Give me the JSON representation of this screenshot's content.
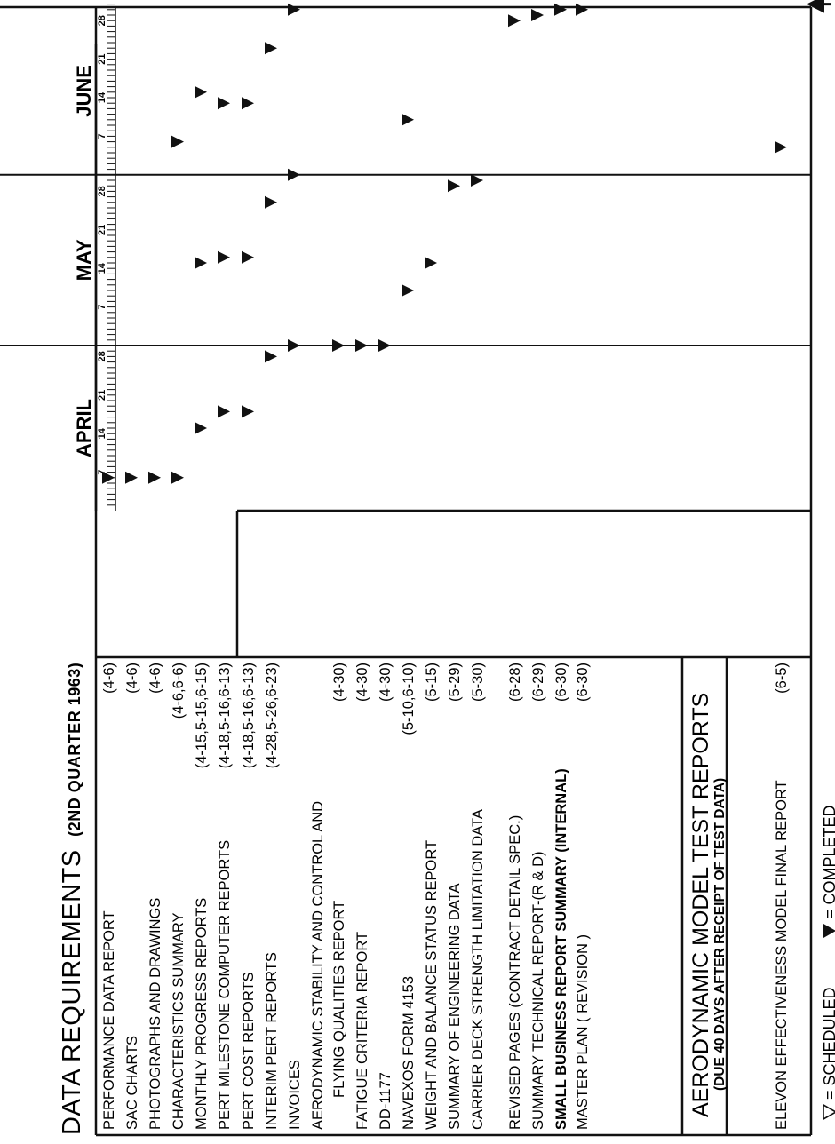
{
  "header": {
    "title": "DATA REQUIREMENTS",
    "subtitle": "(2ND QUARTER 1963)"
  },
  "months": [
    {
      "label": "APRIL",
      "start_day": 1,
      "ticks": [
        "7",
        "14",
        "21",
        "28"
      ]
    },
    {
      "label": "MAY",
      "start_day": 31,
      "ticks": [
        "7",
        "14",
        "21",
        "28"
      ]
    },
    {
      "label": "JUNE",
      "start_day": 62,
      "ticks": [
        "7",
        "14",
        "21",
        "28"
      ]
    }
  ],
  "rows": [
    {
      "label": "PERFORMANCE DATA REPORT",
      "dates": "(4-6)",
      "completed": [
        6
      ]
    },
    {
      "label": "SAC CHARTS",
      "dates": "(4-6)",
      "completed": [
        6
      ]
    },
    {
      "label": "PHOTOGRAPHS AND DRAWINGS",
      "dates": "(4-6)",
      "completed": [
        6
      ]
    },
    {
      "label": "CHARACTERISTICS SUMMARY",
      "dates": "(4-6,6-6)",
      "completed": [
        6,
        67
      ]
    },
    {
      "label": "MONTHLY PROGRESS REPORTS",
      "dates": "(4-15,5-15,6-15)",
      "completed": [
        15,
        45,
        76
      ]
    },
    {
      "label": "PERT MILESTONE COMPUTER REPORTS",
      "dates": "(4-18,5-16,6-13)",
      "completed": [
        18,
        46,
        74
      ]
    },
    {
      "label": "PERT COST REPORTS",
      "dates": "(4-18,5-16,6-13)",
      "completed": [
        18,
        46,
        74
      ]
    },
    {
      "label": "INTERIM PERT REPORTS",
      "dates": "(4-28,5-26,6-23)",
      "completed": [
        28,
        56,
        84
      ]
    },
    {
      "label": "INVOICES",
      "dates": "",
      "completed": [
        30,
        61,
        91
      ]
    },
    {
      "label": "AERODYNAMIC STABILITY AND CONTROL AND",
      "label2": "FLYING QUALITIES REPORT",
      "dates": "(4-30)",
      "completed": [
        30
      ]
    },
    {
      "label": "FATIGUE CRITERIA REPORT",
      "dates": "(4-30)",
      "completed": [
        30
      ]
    },
    {
      "label": "DD-1177",
      "dates": "(4-30)",
      "completed": [
        30
      ]
    },
    {
      "label": "NAVEXOS FORM 4153",
      "dates": "(5-10,6-10)",
      "completed": [
        40,
        71
      ]
    },
    {
      "label": "WEIGHT AND BALANCE STATUS REPORT",
      "dates": "(5-15)",
      "completed": [
        45
      ]
    },
    {
      "label": "SUMMARY OF ENGINEERING DATA",
      "dates": "(5-29)",
      "completed": [
        59
      ]
    },
    {
      "label": "CARRIER DECK STRENGTH LIMITATION DATA",
      "dates": "(5-30)",
      "completed": [
        60
      ]
    },
    {
      "label": "REVISED PAGES (CONTRACT DETAIL SPEC.)",
      "dates": "(6-28)",
      "completed": [
        89
      ]
    },
    {
      "label": "SUMMARY TECHNICAL REPORT-(R & D)",
      "dates": "(6-29)",
      "completed": [
        90
      ]
    },
    {
      "label": "SMALL BUSINESS REPORT SUMMARY (INTERNAL)",
      "dates": "(6-30)",
      "completed": [
        91
      ],
      "bold": true
    },
    {
      "label": "MASTER  PLAN  ( REVISION )",
      "dates": "(6-30)",
      "completed": [
        91
      ]
    }
  ],
  "section2": {
    "title": "AERODYNAMIC MODEL TEST REPORTS",
    "subtitle": "(DUE 40 DAYS AFTER RECEIPT OF TEST DATA)"
  },
  "row_final": {
    "label": "ELEVON EFFECTIVENESS MODEL FINAL REPORT",
    "dates": "(6-5)",
    "completed": [
      66
    ]
  },
  "legend": {
    "scheduled_label": "= SCHEDULED",
    "completed_label": "= COMPLETED"
  },
  "status_date_day": 92,
  "chart_data": {
    "type": "gantt",
    "title": "DATA REQUIREMENTS (2ND QUARTER 1963)",
    "x_axis": {
      "months": [
        "APRIL",
        "MAY",
        "JUNE"
      ],
      "ticks": [
        "7",
        "14",
        "21",
        "28"
      ]
    },
    "series": [
      {
        "name": "COMPLETED"
      },
      {
        "name": "SCHEDULED"
      }
    ]
  }
}
